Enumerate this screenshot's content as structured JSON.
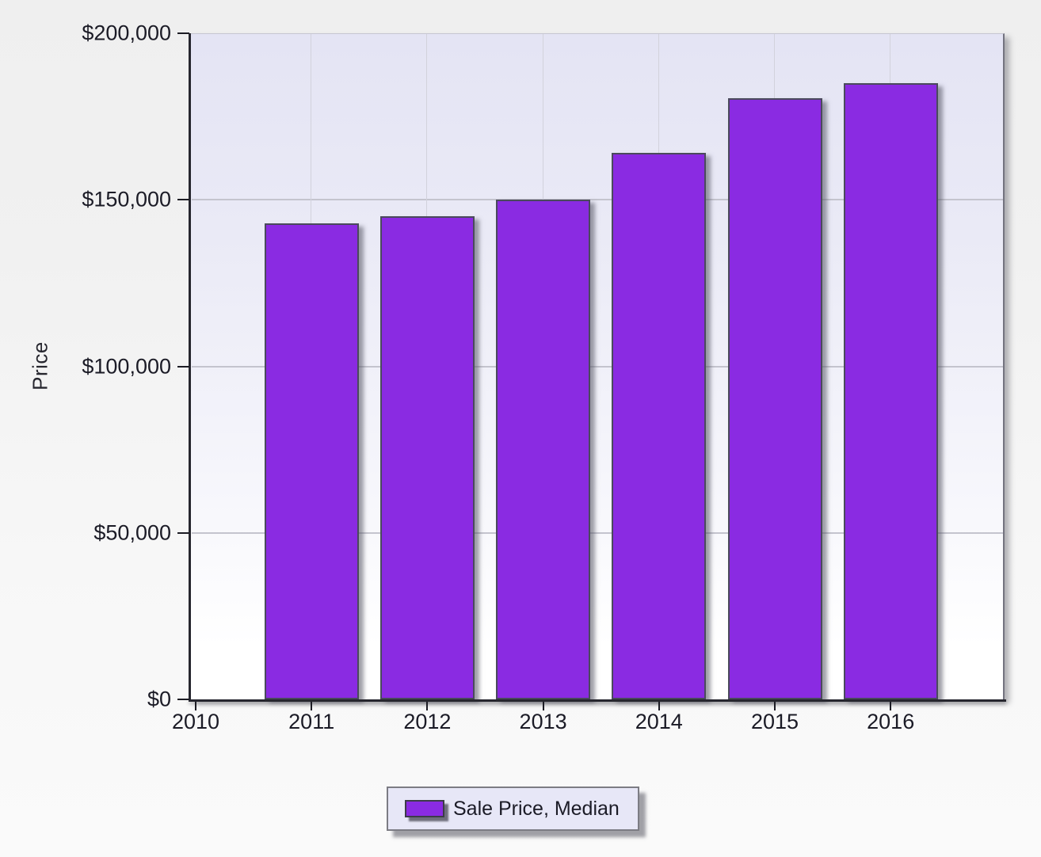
{
  "chart_data": {
    "type": "bar",
    "title": "",
    "xlabel": "",
    "ylabel": "Price",
    "categories": [
      "2011",
      "2012",
      "2013",
      "2014",
      "2015",
      "2016"
    ],
    "series": [
      {
        "name": "Sale Price, Median",
        "values": [
          143000,
          145000,
          150000,
          164000,
          180500,
          185000
        ]
      }
    ],
    "x_tick_labels": [
      "2010",
      "2011",
      "2012",
      "2013",
      "2014",
      "2015",
      "2016"
    ],
    "y_tick_labels": [
      "$0",
      "$50,000",
      "$100,000",
      "$150,000",
      "$200,000"
    ],
    "y_tick_values": [
      0,
      50000,
      100000,
      150000,
      200000
    ],
    "ylim": [
      0,
      200000
    ],
    "grid": true,
    "legend_position": "bottom",
    "legend": {
      "label": "Sale Price, Median",
      "swatch_color": "#8A2BE2"
    },
    "bar_color": "#8A2BE2",
    "bar_border_color": "#4A4A5C"
  },
  "colors": {
    "plot_background_top": "#E4E4F4",
    "plot_background_bottom": "#FFFFFF",
    "page_background": "#F1F1F1",
    "axis_line": "#26262E",
    "horizontal_gridline": "#C4C4CE",
    "vertical_gridline": "#D2D2DC",
    "tick_text": "#1B1B26",
    "legend_background": "#E7E7F7",
    "legend_border": "#7C7C84"
  }
}
